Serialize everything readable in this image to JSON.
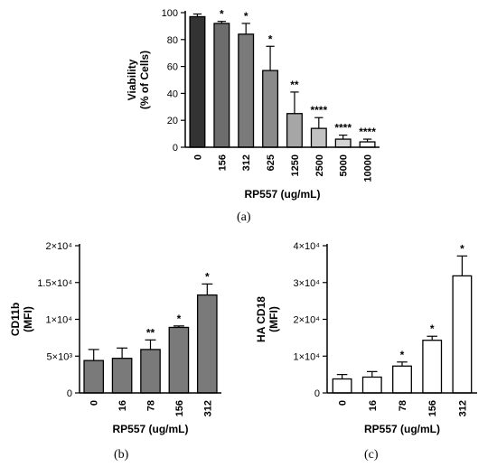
{
  "chart_data": [
    {
      "type": "bar",
      "panel_label": "(a)",
      "xlabel": "RP557 (ug/mL)",
      "ylabel": [
        "Viability",
        "(% of Cells)"
      ],
      "categories": [
        "0",
        "156",
        "312",
        "625",
        "1250",
        "2500",
        "5000",
        "10000"
      ],
      "values": [
        97,
        92,
        84,
        57,
        25,
        14,
        6,
        4
      ],
      "errors": [
        2,
        1.5,
        8,
        18,
        16,
        8,
        3,
        2
      ],
      "significance": [
        "",
        "*",
        "*",
        "*",
        "**",
        "****",
        "****",
        "****"
      ],
      "bar_colors": [
        "#333333",
        "#6d6d6d",
        "#7a7a7a",
        "#8a8a8a",
        "#a6a6a6",
        "#c2c2c2",
        "#d4d4d4",
        "#ffffff"
      ],
      "ylim": [
        0,
        100
      ],
      "yticks": [
        "0",
        "20",
        "40",
        "60",
        "80",
        "100"
      ]
    },
    {
      "type": "bar",
      "panel_label": "(b)",
      "xlabel": "RP557 (ug/mL)",
      "ylabel": [
        "CD11b",
        "(MFI)"
      ],
      "categories": [
        "0",
        "16",
        "78",
        "156",
        "312"
      ],
      "values": [
        4400,
        4700,
        5900,
        8900,
        13300
      ],
      "errors": [
        1500,
        1400,
        1300,
        200,
        1500
      ],
      "significance": [
        "",
        "",
        "**",
        "*",
        "*"
      ],
      "bar_colors": [
        "#7a7a7a",
        "#7a7a7a",
        "#7a7a7a",
        "#7a7a7a",
        "#7a7a7a"
      ],
      "ylim": [
        0,
        20000
      ],
      "yticks": [
        "0",
        "5×10³",
        "1×10⁴",
        "1.5×10⁴",
        "2×10⁴"
      ]
    },
    {
      "type": "bar",
      "panel_label": "(c)",
      "xlabel": "RP557 (ug/mL)",
      "ylabel": [
        "HA CD18",
        "(MFI)"
      ],
      "categories": [
        "0",
        "16",
        "78",
        "156",
        "312"
      ],
      "values": [
        3800,
        4300,
        7300,
        14300,
        31800
      ],
      "errors": [
        1200,
        1500,
        1100,
        1100,
        5400
      ],
      "significance": [
        "",
        "",
        "*",
        "*",
        "*"
      ],
      "bar_colors": [
        "#ffffff",
        "#ffffff",
        "#ffffff",
        "#ffffff",
        "#ffffff"
      ],
      "ylim": [
        0,
        40000
      ],
      "yticks": [
        "0",
        "1×10⁴",
        "2×10⁴",
        "3×10⁴",
        "4×10⁴"
      ]
    }
  ]
}
